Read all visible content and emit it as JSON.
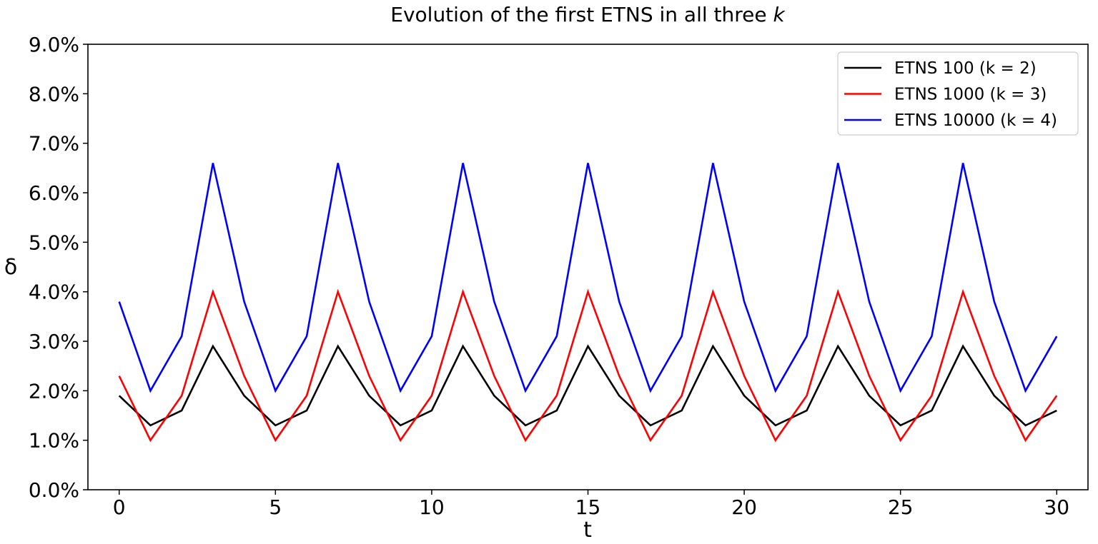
{
  "chart_data": {
    "type": "line",
    "title": "Evolution of the first ETNS in all three ",
    "title_italic": "k",
    "xlabel": "t",
    "ylabel": "δ",
    "xlim": [
      -1,
      31
    ],
    "ylim": [
      0,
      9
    ],
    "x_ticks": [
      0,
      5,
      10,
      15,
      20,
      25,
      30
    ],
    "y_ticks": [
      0,
      1,
      2,
      3,
      4,
      5,
      6,
      7,
      8,
      9
    ],
    "y_tick_labels": [
      "0.0%",
      "1.0%",
      "2.0%",
      "3.0%",
      "4.0%",
      "5.0%",
      "6.0%",
      "7.0%",
      "8.0%",
      "9.0%"
    ],
    "y_unit": "%",
    "grid": false,
    "legend_position": "top-right",
    "x": [
      0,
      1,
      2,
      3,
      4,
      5,
      6,
      7,
      8,
      9,
      10,
      11,
      12,
      13,
      14,
      15,
      16,
      17,
      18,
      19,
      20,
      21,
      22,
      23,
      24,
      25,
      26,
      27,
      28,
      29,
      30
    ],
    "series": [
      {
        "name": "ETNS 100 (k = 2)",
        "color": "#000000",
        "values": [
          1.9,
          1.3,
          1.6,
          2.9,
          1.9,
          1.3,
          1.6,
          2.9,
          1.9,
          1.3,
          1.6,
          2.9,
          1.9,
          1.3,
          1.6,
          2.9,
          1.9,
          1.3,
          1.6,
          2.9,
          1.9,
          1.3,
          1.6,
          2.9,
          1.9,
          1.3,
          1.6,
          2.9,
          1.9,
          1.3,
          1.6
        ]
      },
      {
        "name": "ETNS 1000 (k = 3)",
        "color": "#ff0000",
        "values": [
          2.3,
          1.0,
          1.9,
          4.0,
          2.3,
          1.0,
          1.9,
          4.0,
          2.3,
          1.0,
          1.9,
          4.0,
          2.3,
          1.0,
          1.9,
          4.0,
          2.3,
          1.0,
          1.9,
          4.0,
          2.3,
          1.0,
          1.9,
          4.0,
          2.3,
          1.0,
          1.9,
          4.0,
          2.3,
          1.0,
          1.9
        ]
      },
      {
        "name": "ETNS 10000 (k = 4)",
        "color": "#0000ff",
        "values": [
          3.8,
          2.0,
          3.1,
          6.6,
          3.8,
          2.0,
          3.1,
          6.6,
          3.8,
          2.0,
          3.1,
          6.6,
          3.8,
          2.0,
          3.1,
          6.6,
          3.8,
          2.0,
          3.1,
          6.6,
          3.8,
          2.0,
          3.1,
          6.6,
          3.8,
          2.0,
          3.1,
          6.6,
          3.8,
          2.0,
          3.1
        ]
      }
    ]
  }
}
